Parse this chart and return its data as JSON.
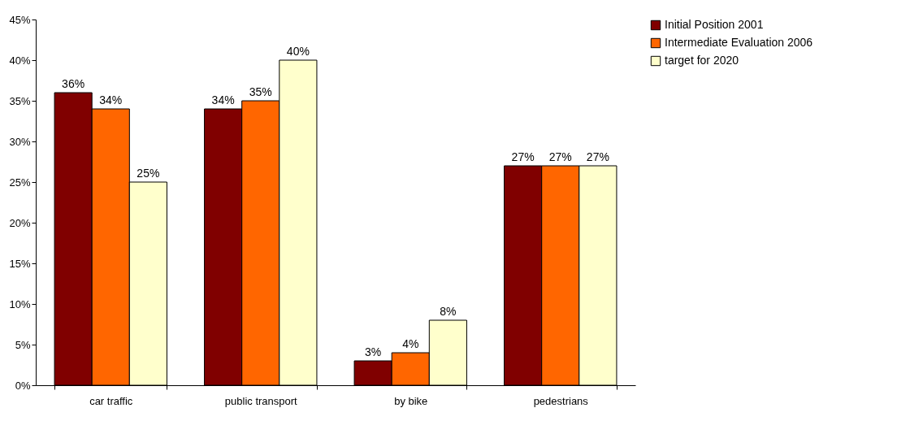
{
  "chart_data": {
    "type": "bar",
    "categories": [
      "car traffic",
      "public transport",
      "by bike",
      "pedestrians"
    ],
    "series": [
      {
        "name": "Initial Position 2001",
        "color": "#800000",
        "values": [
          36,
          34,
          3,
          27
        ],
        "value_labels": [
          "36%",
          "34%",
          "3%",
          "27%"
        ]
      },
      {
        "name": "Intermediate Evaluation 2006",
        "color": "#ff6600",
        "values": [
          34,
          35,
          4,
          27
        ],
        "value_labels": [
          "34%",
          "35%",
          "4%",
          "27%"
        ]
      },
      {
        "name": "target for 2020",
        "color": "#ffffcc",
        "values": [
          25,
          40,
          8,
          27
        ],
        "value_labels": [
          "25%",
          "40%",
          "8%",
          "27%"
        ]
      }
    ],
    "ylim": [
      0,
      45
    ],
    "yticks": [
      {
        "value": 0,
        "label": "0%"
      },
      {
        "value": 5,
        "label": "5%"
      },
      {
        "value": 10,
        "label": "10%"
      },
      {
        "value": 15,
        "label": "15%"
      },
      {
        "value": 20,
        "label": "20%"
      },
      {
        "value": 25,
        "label": "25%"
      },
      {
        "value": 30,
        "label": "30%"
      },
      {
        "value": 35,
        "label": "35%"
      },
      {
        "value": 40,
        "label": "40%"
      },
      {
        "value": 45,
        "label": "45%"
      }
    ],
    "grid": false,
    "legend": "right"
  }
}
